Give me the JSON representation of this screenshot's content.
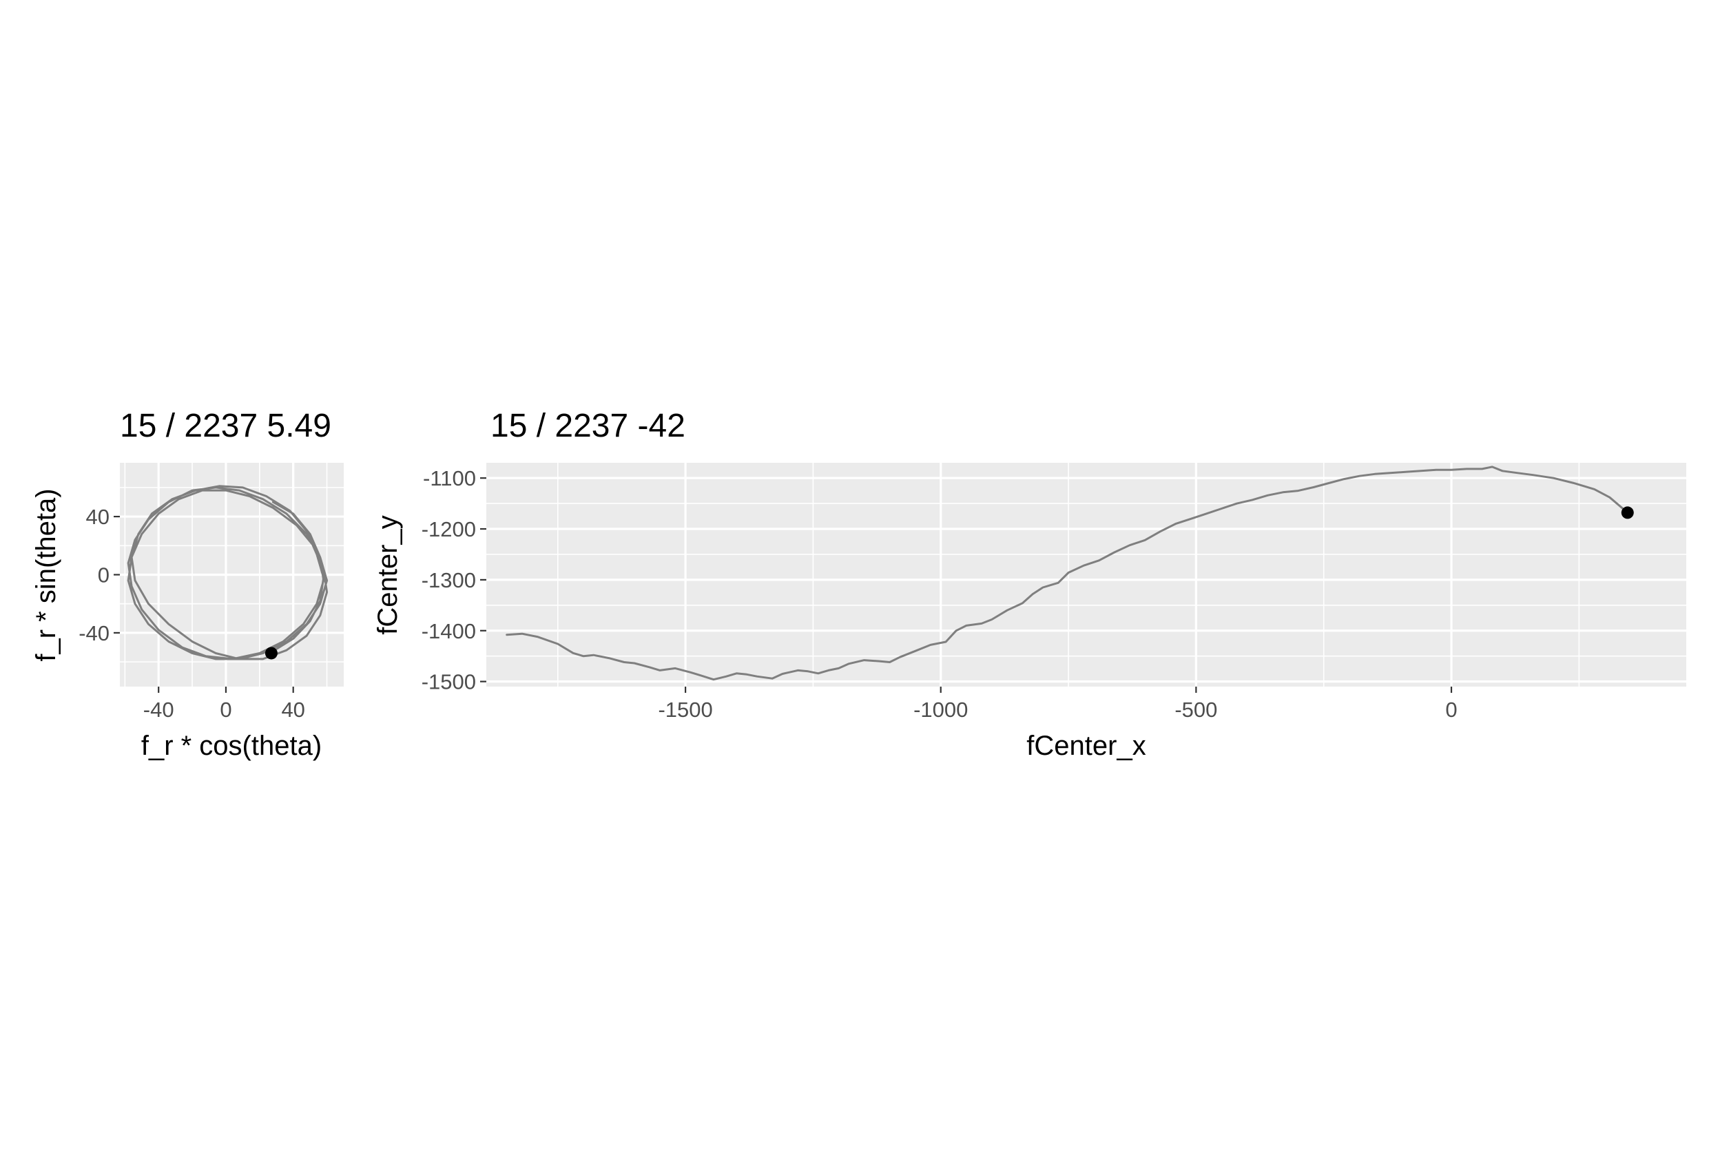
{
  "colors": {
    "panel": "#ebebeb",
    "grid": "#ffffff",
    "path": "#7f7f7f",
    "point": "#000000"
  },
  "chart_data": [
    {
      "type": "line",
      "title": "15 / 2237 5.49",
      "xlabel": "f_r * cos(theta)",
      "ylabel": "f_r * sin(theta)",
      "xlim": [
        -63,
        70
      ],
      "ylim": [
        -77,
        77
      ],
      "xticks": [
        -40,
        0,
        40
      ],
      "yticks": [
        -40,
        0,
        40
      ],
      "xtick_labels": [
        "-40",
        "0",
        "40"
      ],
      "ytick_labels": [
        "-40",
        "0",
        "40"
      ],
      "grid": true,
      "series": [
        {
          "x": [
            26,
            40,
            50,
            56,
            58,
            54,
            48,
            38,
            24,
            10,
            -4,
            -18,
            -32,
            -44,
            -52,
            -56,
            -54,
            -46,
            -34,
            -20,
            -6,
            8,
            22,
            36,
            48,
            56,
            60,
            58,
            52,
            42,
            28,
            14,
            0,
            -14,
            -28,
            -40,
            -50,
            -56,
            -58,
            -54,
            -46,
            -34,
            -20,
            -6,
            8,
            22,
            36,
            48,
            56,
            60,
            56,
            48,
            36,
            22,
            8,
            -6,
            -20,
            -34,
            -46,
            -54,
            -58,
            -56,
            -50,
            -40,
            -26,
            -12,
            4,
            20,
            34,
            46,
            54,
            58,
            56,
            50,
            40,
            28
          ],
          "y": [
            -54,
            -44,
            -32,
            -18,
            -2,
            14,
            30,
            44,
            54,
            60,
            61,
            58,
            52,
            42,
            28,
            12,
            -4,
            -20,
            -34,
            -46,
            -54,
            -58,
            -58,
            -52,
            -42,
            -28,
            -12,
            4,
            20,
            34,
            46,
            54,
            58,
            58,
            52,
            42,
            28,
            12,
            -4,
            -20,
            -34,
            -46,
            -54,
            -58,
            -58,
            -54,
            -46,
            -34,
            -20,
            -4,
            12,
            28,
            42,
            52,
            58,
            60,
            58,
            50,
            38,
            24,
            8,
            -8,
            -24,
            -38,
            -50,
            -56,
            -58,
            -54,
            -46,
            -34,
            -20,
            -4,
            12,
            28,
            42,
            50
          ],
          "current_point": [
            27,
            -54
          ]
        }
      ]
    },
    {
      "type": "line",
      "title": "15 / 2237 -42",
      "xlabel": "fCenter_x",
      "ylabel": "fCenter_y",
      "xlim": [
        -1890,
        460
      ],
      "ylim": [
        -1510,
        -1070
      ],
      "xticks": [
        -1500,
        -1000,
        -500,
        0
      ],
      "yticks": [
        -1500,
        -1400,
        -1300,
        -1200,
        -1100
      ],
      "xtick_labels": [
        "-1500",
        "-1000",
        "-500",
        "0"
      ],
      "ytick_labels": [
        "-1500",
        "-1400",
        "-1300",
        "-1200",
        "-1100"
      ],
      "grid": true,
      "series": [
        {
          "x": [
            -1850,
            -1820,
            -1790,
            -1750,
            -1720,
            -1700,
            -1680,
            -1650,
            -1620,
            -1600,
            -1570,
            -1550,
            -1520,
            -1490,
            -1470,
            -1445,
            -1420,
            -1400,
            -1380,
            -1360,
            -1330,
            -1310,
            -1280,
            -1260,
            -1240,
            -1220,
            -1200,
            -1180,
            -1150,
            -1120,
            -1100,
            -1080,
            -1050,
            -1020,
            -990,
            -970,
            -950,
            -920,
            -900,
            -870,
            -840,
            -820,
            -800,
            -770,
            -750,
            -720,
            -690,
            -660,
            -630,
            -600,
            -570,
            -540,
            -510,
            -480,
            -450,
            -420,
            -390,
            -360,
            -330,
            -300,
            -270,
            -240,
            -210,
            -180,
            -150,
            -120,
            -90,
            -60,
            -30,
            0,
            30,
            60,
            80,
            100,
            130,
            160,
            200,
            240,
            280,
            310,
            345
          ],
          "y": [
            -1408,
            -1406,
            -1412,
            -1426,
            -1444,
            -1450,
            -1448,
            -1454,
            -1462,
            -1464,
            -1472,
            -1478,
            -1474,
            -1482,
            -1488,
            -1496,
            -1490,
            -1484,
            -1486,
            -1490,
            -1494,
            -1485,
            -1478,
            -1480,
            -1484,
            -1478,
            -1474,
            -1465,
            -1458,
            -1460,
            -1462,
            -1452,
            -1440,
            -1428,
            -1422,
            -1400,
            -1390,
            -1386,
            -1378,
            -1360,
            -1346,
            -1328,
            -1315,
            -1306,
            -1286,
            -1272,
            -1262,
            -1246,
            -1232,
            -1222,
            -1205,
            -1190,
            -1180,
            -1170,
            -1160,
            -1150,
            -1143,
            -1134,
            -1128,
            -1125,
            -1118,
            -1110,
            -1102,
            -1096,
            -1092,
            -1090,
            -1088,
            -1086,
            -1084,
            -1084,
            -1082,
            -1082,
            -1078,
            -1086,
            -1090,
            -1094,
            -1100,
            -1110,
            -1122,
            -1138,
            -1168
          ],
          "current_point": [
            345,
            -1168
          ]
        }
      ]
    }
  ]
}
